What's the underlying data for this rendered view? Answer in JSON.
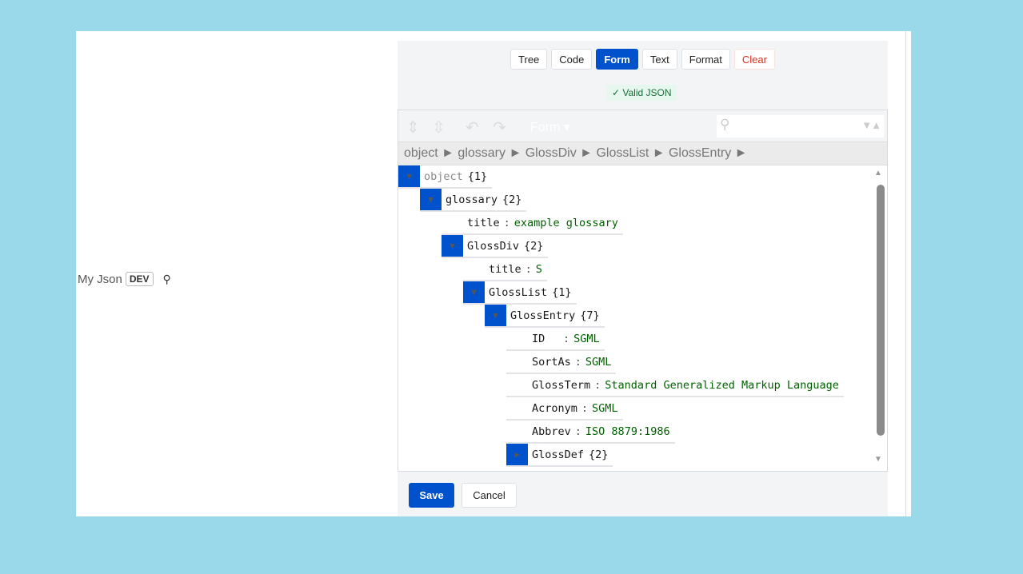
{
  "field": {
    "label": "My Json",
    "badge": "DEV",
    "pin_icon": "pin-icon"
  },
  "modes": [
    {
      "label": "Tree"
    },
    {
      "label": "Code"
    },
    {
      "label": "Form",
      "active": true
    },
    {
      "label": "Text"
    },
    {
      "label": "Format"
    },
    {
      "label": "Clear"
    }
  ],
  "status": "✓ Valid JSON",
  "toolbar": {
    "mode": "Form ▾",
    "search_value": ""
  },
  "breadcrumb": "object ► glossary ► GlossDiv ► GlossList ► GlossEntry ►",
  "tree": [
    {
      "level": 0,
      "toggle": "expanded",
      "key": "object",
      "count": "{1}",
      "root": true
    },
    {
      "level": 1,
      "toggle": "expanded",
      "key": "glossary",
      "count": "{2}"
    },
    {
      "level": 2,
      "key": "title",
      "value": "example glossary"
    },
    {
      "level": 2,
      "toggle": "expanded",
      "key": "GlossDiv",
      "count": "{2}"
    },
    {
      "level": 3,
      "key": "title",
      "value": "S"
    },
    {
      "level": 3,
      "toggle": "expanded",
      "key": "GlossList",
      "count": "{1}"
    },
    {
      "level": 4,
      "toggle": "expanded",
      "key": "GlossEntry",
      "count": "{7}"
    },
    {
      "level": 5,
      "key": "ID",
      "value": "SGML"
    },
    {
      "level": 5,
      "key": "SortAs",
      "value": "SGML"
    },
    {
      "level": 5,
      "key": "GlossTerm",
      "value": "Standard Generalized Markup Language"
    },
    {
      "level": 5,
      "key": "Acronym",
      "value": "SGML"
    },
    {
      "level": 5,
      "key": "Abbrev",
      "value": "ISO 8879:1986"
    },
    {
      "level": 5,
      "toggle": "collapsed",
      "key": "GlossDef",
      "count": "{2}"
    }
  ],
  "footer": {
    "save": "Save",
    "cancel": "Cancel"
  },
  "colors": {
    "accent": "#0052cc",
    "background": "#9ad9ea",
    "value": "#006000",
    "clear": "#e0301e"
  }
}
